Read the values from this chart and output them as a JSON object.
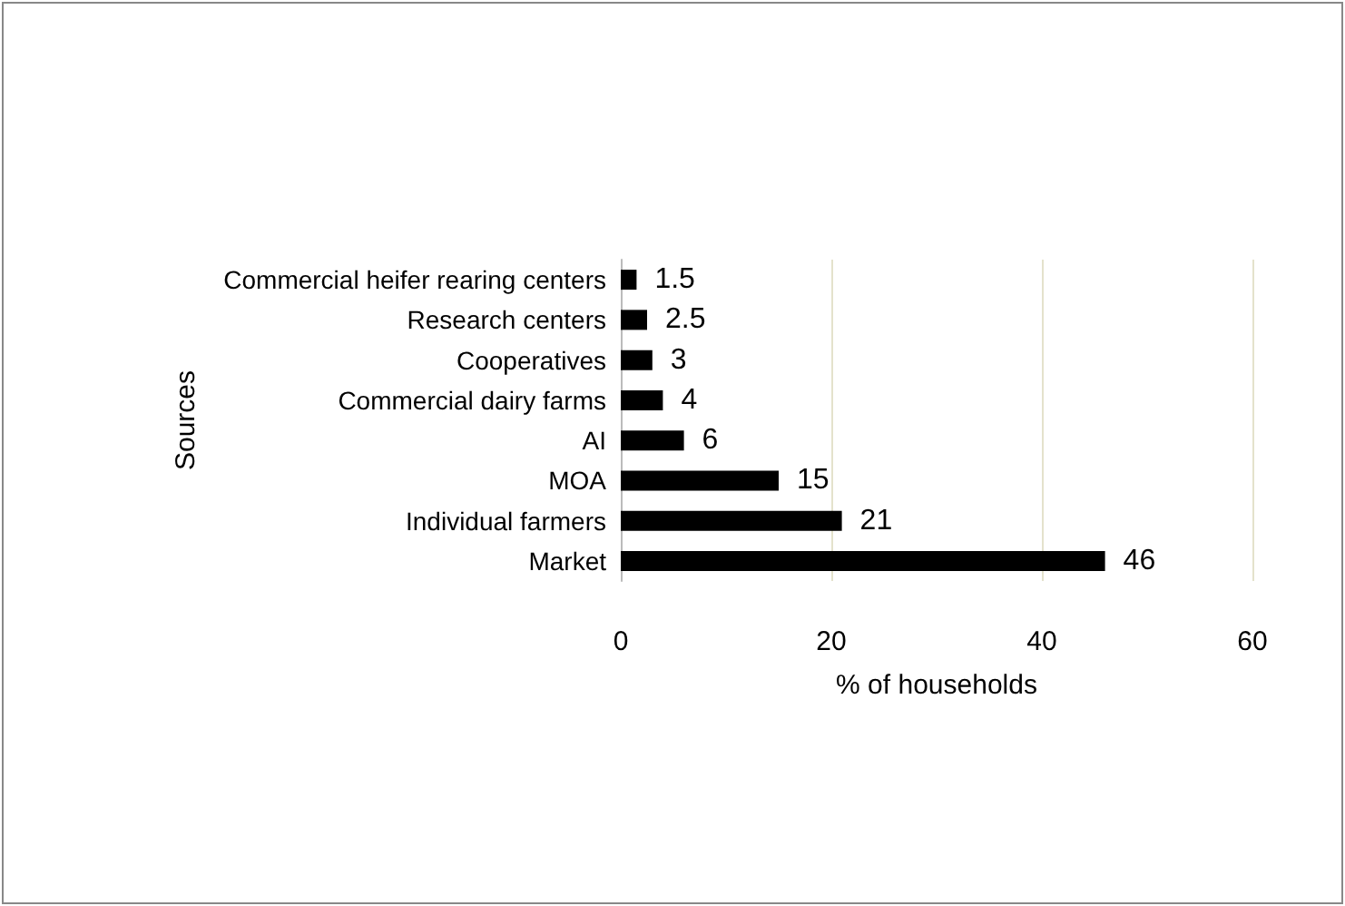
{
  "chart_data": {
    "type": "bar",
    "orientation": "horizontal",
    "xlabel": "% of households",
    "ylabel": "Sources",
    "categories": [
      "Commercial heifer rearing centers",
      "Research centers",
      "Cooperatives",
      "Commercial dairy farms",
      "AI",
      "MOA",
      "Individual farmers",
      "Market"
    ],
    "values": [
      1.5,
      2.5,
      3,
      4,
      6,
      15,
      21,
      46
    ],
    "color": "#000000",
    "data_labels": true,
    "xlim": [
      0,
      60
    ],
    "xticks": [
      0,
      20,
      40,
      60
    ],
    "grid": "x"
  }
}
